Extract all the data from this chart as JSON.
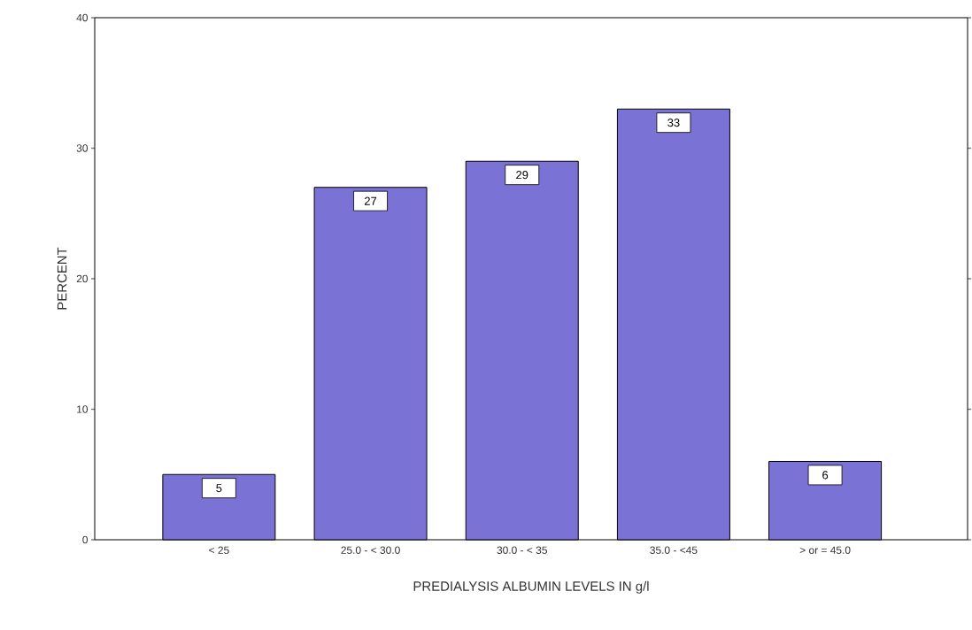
{
  "chart_data": {
    "type": "bar",
    "xlabel": "PREDIALYSIS ALBUMIN LEVELS IN g/l",
    "ylabel": "PERCENT",
    "categories": [
      "< 25",
      "25.0 - < 30.0",
      "30.0 - < 35",
      "35.0 - <45",
      "> or = 45.0"
    ],
    "values": [
      5,
      27,
      29,
      33,
      6
    ],
    "color": "#7b72d6",
    "ylim": [
      0,
      40
    ],
    "yticks": [
      0,
      10,
      20,
      30,
      40
    ],
    "data_labels": true
  }
}
